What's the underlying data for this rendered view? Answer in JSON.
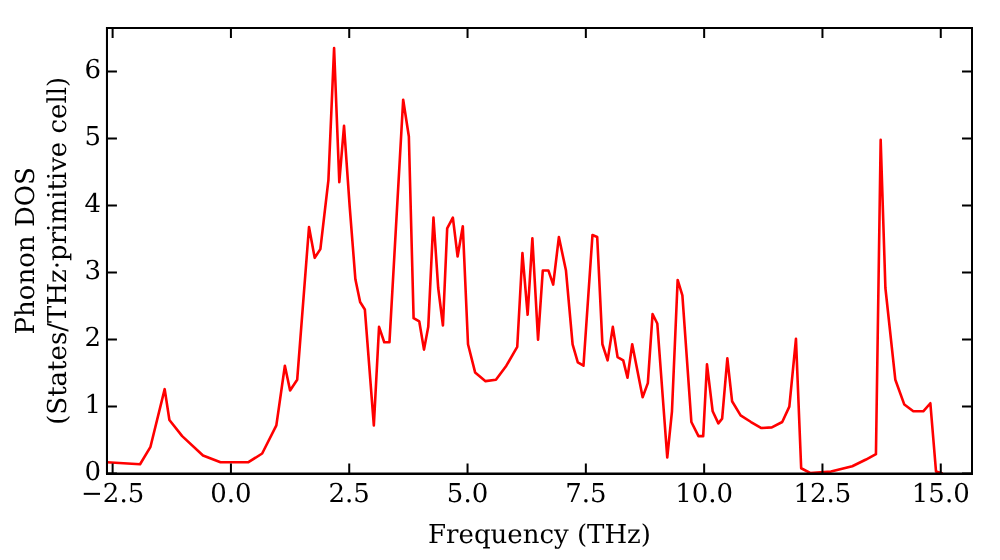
{
  "chart_data": {
    "type": "line",
    "xlabel": "Frequency (THz)",
    "ylabel": "Phonon DOS\n(States/THz·primitive cell)",
    "xlim": [
      -2.62,
      15.66
    ],
    "ylim": [
      0,
      6.65
    ],
    "xticks": [
      {
        "value": -2.5,
        "label": "−2.5"
      },
      {
        "value": 0,
        "label": "0.0"
      },
      {
        "value": 2.5,
        "label": "2.5"
      },
      {
        "value": 5,
        "label": "5.0"
      },
      {
        "value": 7.5,
        "label": "7.5"
      },
      {
        "value": 10,
        "label": "10.0"
      },
      {
        "value": 12.5,
        "label": "12.5"
      },
      {
        "value": 15,
        "label": "15.0"
      }
    ],
    "yticks": [
      0,
      1,
      2,
      3,
      4,
      5,
      6
    ],
    "grid": false,
    "legend": false,
    "marker": "none",
    "line_style": "solid",
    "x": [
      -2.62,
      -1.92,
      -1.7,
      -1.4,
      -1.3,
      -1.03,
      -0.59,
      -0.22,
      0.37,
      0.66,
      0.96,
      1.14,
      1.25,
      1.4,
      1.65,
      1.77,
      1.89,
      2.06,
      2.18,
      2.29,
      2.39,
      2.51,
      2.63,
      2.73,
      2.83,
      3.02,
      3.13,
      3.24,
      3.35,
      3.64,
      3.76,
      3.86,
      3.98,
      4.08,
      4.17,
      4.28,
      4.38,
      4.48,
      4.57,
      4.69,
      4.79,
      4.9,
      5.01,
      5.16,
      5.38,
      5.6,
      5.82,
      6.05,
      6.16,
      6.27,
      6.37,
      6.49,
      6.59,
      6.71,
      6.81,
      6.93,
      7.08,
      7.22,
      7.33,
      7.45,
      7.64,
      7.74,
      7.85,
      7.96,
      8.07,
      8.17,
      8.29,
      8.38,
      8.48,
      8.7,
      8.81,
      8.91,
      9.01,
      9.22,
      9.32,
      9.44,
      9.54,
      9.73,
      9.88,
      9.98,
      10.06,
      10.18,
      10.3,
      10.38,
      10.49,
      10.59,
      10.77,
      10.99,
      11.21,
      11.43,
      11.65,
      11.8,
      11.94,
      12.05,
      12.24,
      12.68,
      13.13,
      13.42,
      13.63,
      13.73,
      13.83,
      14.04,
      14.23,
      14.42,
      14.63,
      14.78,
      14.9,
      15.04
    ],
    "series": [
      {
        "color": "#ff0000",
        "values": [
          0.17,
          0.14,
          0.4,
          1.26,
          0.8,
          0.56,
          0.27,
          0.17,
          0.17,
          0.3,
          0.72,
          1.61,
          1.24,
          1.4,
          3.68,
          3.22,
          3.35,
          4.38,
          6.35,
          4.35,
          5.19,
          3.98,
          2.9,
          2.56,
          2.45,
          0.72,
          2.19,
          1.96,
          1.96,
          5.58,
          5.03,
          2.32,
          2.27,
          1.85,
          2.19,
          3.82,
          2.77,
          2.21,
          3.66,
          3.82,
          3.24,
          3.69,
          1.93,
          1.51,
          1.38,
          1.4,
          1.61,
          1.89,
          3.29,
          2.37,
          3.51,
          2.0,
          3.03,
          3.03,
          2.82,
          3.53,
          3.03,
          1.93,
          1.66,
          1.61,
          3.56,
          3.53,
          1.93,
          1.69,
          2.19,
          1.74,
          1.69,
          1.43,
          1.93,
          1.14,
          1.35,
          2.38,
          2.24,
          0.24,
          0.93,
          2.89,
          2.66,
          0.77,
          0.56,
          0.56,
          1.63,
          0.93,
          0.75,
          0.82,
          1.72,
          1.08,
          0.87,
          0.77,
          0.68,
          0.69,
          0.77,
          1.0,
          2.01,
          0.08,
          0.01,
          0.03,
          0.11,
          0.21,
          0.29,
          4.98,
          2.77,
          1.4,
          1.03,
          0.93,
          0.93,
          1.05,
          0.03,
          0
        ]
      }
    ]
  }
}
